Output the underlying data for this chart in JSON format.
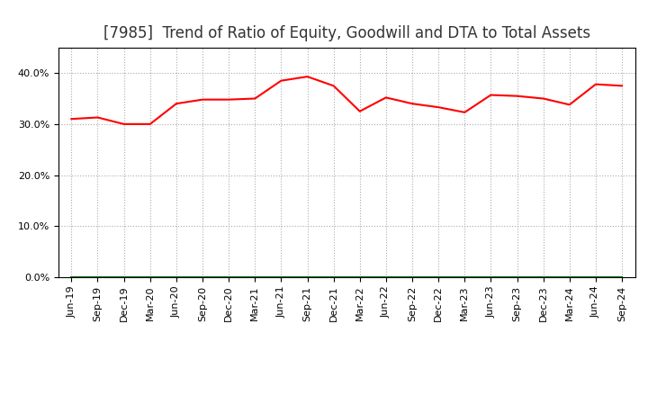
{
  "title": "[7985]  Trend of Ratio of Equity, Goodwill and DTA to Total Assets",
  "x_labels": [
    "Jun-19",
    "Sep-19",
    "Dec-19",
    "Mar-20",
    "Jun-20",
    "Sep-20",
    "Dec-20",
    "Mar-21",
    "Jun-21",
    "Sep-21",
    "Dec-21",
    "Mar-22",
    "Jun-22",
    "Sep-22",
    "Dec-22",
    "Mar-23",
    "Jun-23",
    "Sep-23",
    "Dec-23",
    "Mar-24",
    "Jun-24",
    "Sep-24"
  ],
  "equity": [
    0.31,
    0.313,
    0.3,
    0.3,
    0.34,
    0.348,
    0.348,
    0.35,
    0.385,
    0.393,
    0.375,
    0.325,
    0.352,
    0.34,
    0.333,
    0.323,
    0.357,
    0.355,
    0.35,
    0.338,
    0.378,
    0.375
  ],
  "goodwill": [
    0.0,
    0.0,
    0.0,
    0.0,
    0.0,
    0.0,
    0.0,
    0.0,
    0.0,
    0.0,
    0.0,
    0.0,
    0.0,
    0.0,
    0.0,
    0.0,
    0.0,
    0.0,
    0.0,
    0.0,
    0.0,
    0.0
  ],
  "dta": [
    0.0,
    0.0,
    0.0,
    0.0,
    0.0,
    0.0,
    0.0,
    0.0,
    0.0,
    0.0,
    0.0,
    0.0,
    0.0,
    0.0,
    0.0,
    0.0,
    0.0,
    0.0,
    0.0,
    0.0,
    0.0,
    0.0
  ],
  "equity_color": "#ff0000",
  "goodwill_color": "#0000cc",
  "dta_color": "#008000",
  "ylim": [
    0.0,
    0.45
  ],
  "yticks": [
    0.0,
    0.1,
    0.2,
    0.3,
    0.4
  ],
  "background_color": "#ffffff",
  "grid_color": "#aaaaaa",
  "title_fontsize": 12,
  "legend_fontsize": 9,
  "tick_fontsize": 8
}
